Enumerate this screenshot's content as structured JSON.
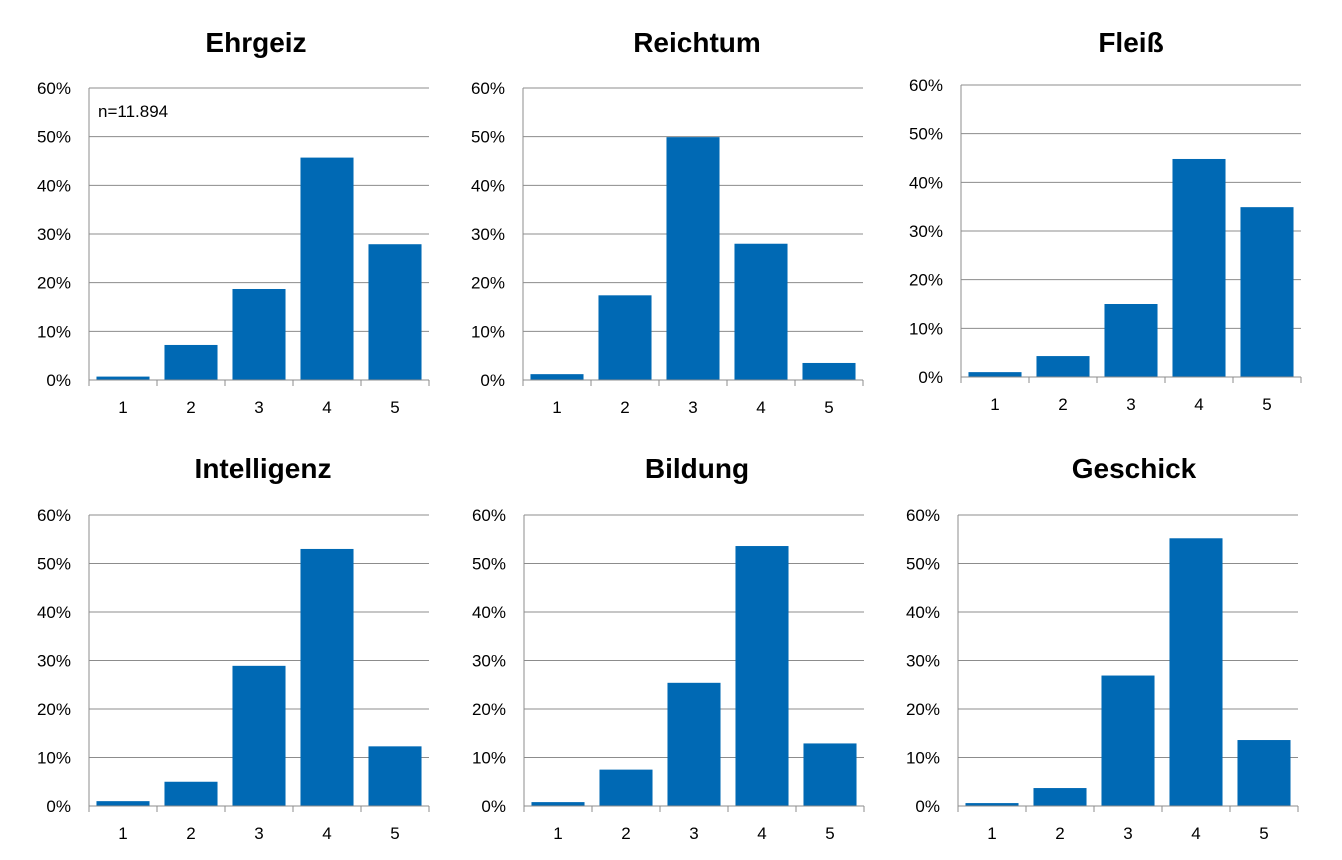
{
  "colors": {
    "bar": "#0069b4",
    "grid": "#8c8c8c",
    "axis": "#8c8c8c"
  },
  "chart_data": [
    {
      "type": "bar",
      "title": "Ehrgeiz",
      "categories": [
        "1",
        "2",
        "3",
        "4",
        "5"
      ],
      "values": [
        0.7,
        7.2,
        18.7,
        45.7,
        27.9
      ],
      "ylim": [
        0,
        60
      ],
      "yticks": [
        "0%",
        "10%",
        "20%",
        "30%",
        "40%",
        "50%",
        "60%"
      ],
      "annotation": "n=11.894",
      "grid": true
    },
    {
      "type": "bar",
      "title": "Reichtum",
      "categories": [
        "1",
        "2",
        "3",
        "4",
        "5"
      ],
      "values": [
        1.2,
        17.4,
        49.9,
        28.0,
        3.5
      ],
      "ylim": [
        0,
        60
      ],
      "yticks": [
        "0%",
        "10%",
        "20%",
        "30%",
        "40%",
        "50%",
        "60%"
      ],
      "grid": true
    },
    {
      "type": "bar",
      "title": "Fleiß",
      "categories": [
        "1",
        "2",
        "3",
        "4",
        "5"
      ],
      "values": [
        1.0,
        4.3,
        15.0,
        44.8,
        34.9
      ],
      "ylim": [
        0,
        60
      ],
      "yticks": [
        "0%",
        "10%",
        "20%",
        "30%",
        "40%",
        "50%",
        "60%"
      ],
      "grid": true
    },
    {
      "type": "bar",
      "title": "Intelligenz",
      "categories": [
        "1",
        "2",
        "3",
        "4",
        "5"
      ],
      "values": [
        1.0,
        5.0,
        28.9,
        53.0,
        12.3
      ],
      "ylim": [
        0,
        60
      ],
      "yticks": [
        "0%",
        "10%",
        "20%",
        "30%",
        "40%",
        "50%",
        "60%"
      ],
      "grid": true
    },
    {
      "type": "bar",
      "title": "Bildung",
      "categories": [
        "1",
        "2",
        "3",
        "4",
        "5"
      ],
      "values": [
        0.8,
        7.5,
        25.4,
        53.6,
        12.9
      ],
      "ylim": [
        0,
        60
      ],
      "yticks": [
        "0%",
        "10%",
        "20%",
        "30%",
        "40%",
        "50%",
        "60%"
      ],
      "grid": true
    },
    {
      "type": "bar",
      "title": "Geschick",
      "categories": [
        "1",
        "2",
        "3",
        "4",
        "5"
      ],
      "values": [
        0.6,
        3.7,
        26.9,
        55.2,
        13.6
      ],
      "ylim": [
        0,
        60
      ],
      "yticks": [
        "0%",
        "10%",
        "20%",
        "30%",
        "40%",
        "50%",
        "60%"
      ],
      "grid": true
    }
  ]
}
